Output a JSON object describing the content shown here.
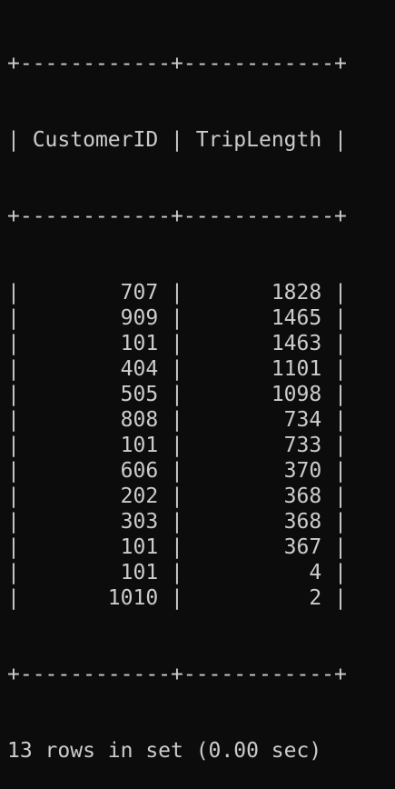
{
  "table": {
    "border": "+------------+------------+",
    "columns": [
      "CustomerID",
      "TripLength"
    ],
    "rows": [
      [
        "707",
        "1828"
      ],
      [
        "909",
        "1465"
      ],
      [
        "101",
        "1463"
      ],
      [
        "404",
        "1101"
      ],
      [
        "505",
        "1098"
      ],
      [
        "808",
        "734"
      ],
      [
        "101",
        "733"
      ],
      [
        "606",
        "370"
      ],
      [
        "202",
        "368"
      ],
      [
        "303",
        "368"
      ],
      [
        "101",
        "367"
      ],
      [
        "101",
        "4"
      ],
      [
        "1010",
        "2"
      ]
    ]
  },
  "status": "13 rows in set (0.00 sec)",
  "colors": {
    "background": "#0c0c0c",
    "text": "#cccccc"
  }
}
